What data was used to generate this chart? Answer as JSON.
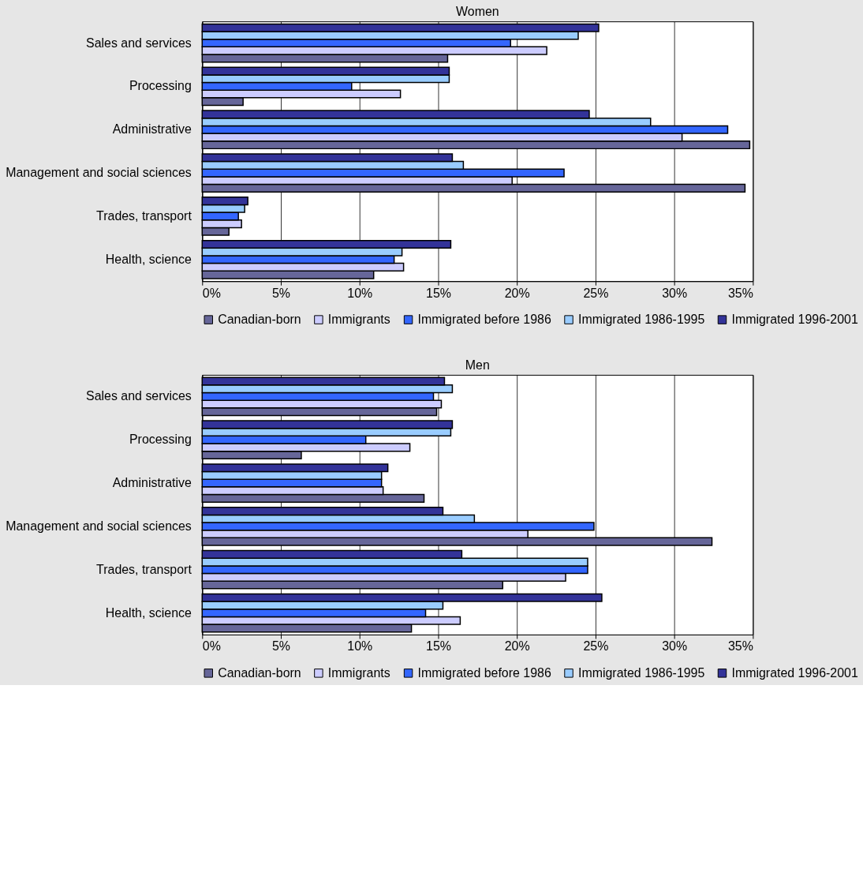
{
  "chart_data": [
    {
      "type": "bar",
      "orientation": "horizontal",
      "title": "Women",
      "categories": [
        "Sales and services",
        "Processing",
        "Administrative",
        "Management and social sciences",
        "Trades, transport",
        "Health, science"
      ],
      "xlim": [
        0,
        35
      ],
      "xticks": [
        {
          "value": 0,
          "label": "0%"
        },
        {
          "value": 5,
          "label": "5%"
        },
        {
          "value": 10,
          "label": "10%"
        },
        {
          "value": 15,
          "label": "15%"
        },
        {
          "value": 20,
          "label": "20%"
        },
        {
          "value": 25,
          "label": "25%"
        },
        {
          "value": 30,
          "label": "30%"
        },
        {
          "value": 35,
          "label": "35%"
        }
      ],
      "grid": "x",
      "legend": "bottom",
      "series": [
        {
          "name": "Canadian-born",
          "color": "#666699",
          "values": [
            15.6,
            2.6,
            34.8,
            34.5,
            1.7,
            10.9
          ]
        },
        {
          "name": "Immigrants",
          "color": "#ccccff",
          "values": [
            21.9,
            12.6,
            30.5,
            19.7,
            2.5,
            12.8
          ]
        },
        {
          "name": "Immigrated before 1986",
          "color": "#3366ff",
          "values": [
            19.6,
            9.5,
            33.4,
            23.0,
            2.3,
            12.2
          ]
        },
        {
          "name": "Immigrated 1986-1995",
          "color": "#99ccff",
          "values": [
            23.9,
            15.7,
            28.5,
            16.6,
            2.7,
            12.7
          ]
        },
        {
          "name": "Immigrated 1996-2001",
          "color": "#333399",
          "values": [
            25.2,
            15.7,
            24.6,
            15.9,
            2.9,
            15.8
          ]
        }
      ]
    },
    {
      "type": "bar",
      "orientation": "horizontal",
      "title": "Men",
      "categories": [
        "Sales and services",
        "Processing",
        "Administrative",
        "Management and social sciences",
        "Trades, transport",
        "Health, science"
      ],
      "xlim": [
        0,
        35
      ],
      "xticks": [
        {
          "value": 0,
          "label": "0%"
        },
        {
          "value": 5,
          "label": "5%"
        },
        {
          "value": 10,
          "label": "10%"
        },
        {
          "value": 15,
          "label": "15%"
        },
        {
          "value": 20,
          "label": "20%"
        },
        {
          "value": 25,
          "label": "25%"
        },
        {
          "value": 30,
          "label": "30%"
        },
        {
          "value": 35,
          "label": "35%"
        }
      ],
      "grid": "x",
      "legend": "bottom",
      "series": [
        {
          "name": "Canadian-born",
          "color": "#666699",
          "values": [
            14.9,
            6.3,
            14.1,
            32.4,
            19.1,
            13.3
          ]
        },
        {
          "name": "Immigrants",
          "color": "#ccccff",
          "values": [
            15.2,
            13.2,
            11.5,
            20.7,
            23.1,
            16.4
          ]
        },
        {
          "name": "Immigrated before 1986",
          "color": "#3366ff",
          "values": [
            14.7,
            10.4,
            11.4,
            24.9,
            24.5,
            14.2
          ]
        },
        {
          "name": "Immigrated 1986-1995",
          "color": "#99ccff",
          "values": [
            15.9,
            15.8,
            11.4,
            17.3,
            24.5,
            15.3
          ]
        },
        {
          "name": "Immigrated 1996-2001",
          "color": "#333399",
          "values": [
            15.4,
            15.9,
            11.8,
            15.3,
            16.5,
            25.4
          ]
        }
      ]
    }
  ]
}
